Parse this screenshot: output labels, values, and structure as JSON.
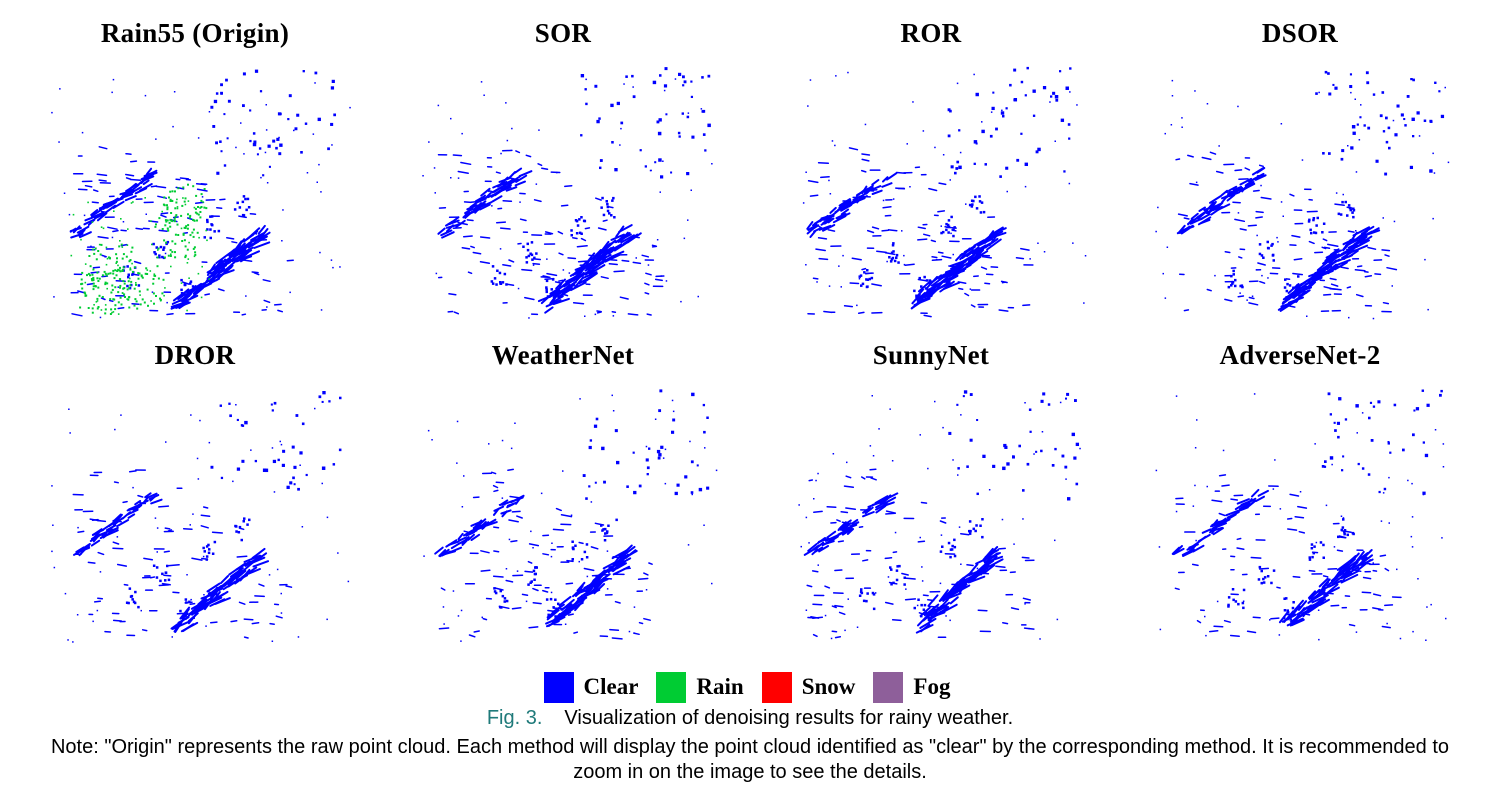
{
  "colors": {
    "clear": "#0000ff",
    "rain": "#00cc33",
    "snow": "#ff0000",
    "fog": "#8e5f9a"
  },
  "panels": [
    {
      "title": "Rain55 (Origin)",
      "show_rain": true,
      "variant": 0
    },
    {
      "title": "SOR",
      "show_rain": false,
      "variant": 1
    },
    {
      "title": "ROR",
      "show_rain": false,
      "variant": 2
    },
    {
      "title": "DSOR",
      "show_rain": false,
      "variant": 3
    },
    {
      "title": "DROR",
      "show_rain": false,
      "variant": 4
    },
    {
      "title": "WeatherNet",
      "show_rain": false,
      "variant": 5
    },
    {
      "title": "SunnyNet",
      "show_rain": false,
      "variant": 6
    },
    {
      "title": "AdverseNet-2",
      "show_rain": false,
      "variant": 7
    }
  ],
  "legend": [
    {
      "label": "Clear",
      "color": "#0000ff"
    },
    {
      "label": "Rain",
      "color": "#00cc33"
    },
    {
      "label": "Snow",
      "color": "#ff0000"
    },
    {
      "label": "Fog",
      "color": "#8e5f9a"
    }
  ],
  "caption": {
    "fig_number": "Fig. 3.",
    "text": "Visualization of denoising results for rainy weather."
  },
  "note": "Note: \"Origin\" represents the raw point cloud. Each method will display the point cloud identified as \"clear\" by the corresponding method. It is recommended to zoom in on the image to see the details."
}
